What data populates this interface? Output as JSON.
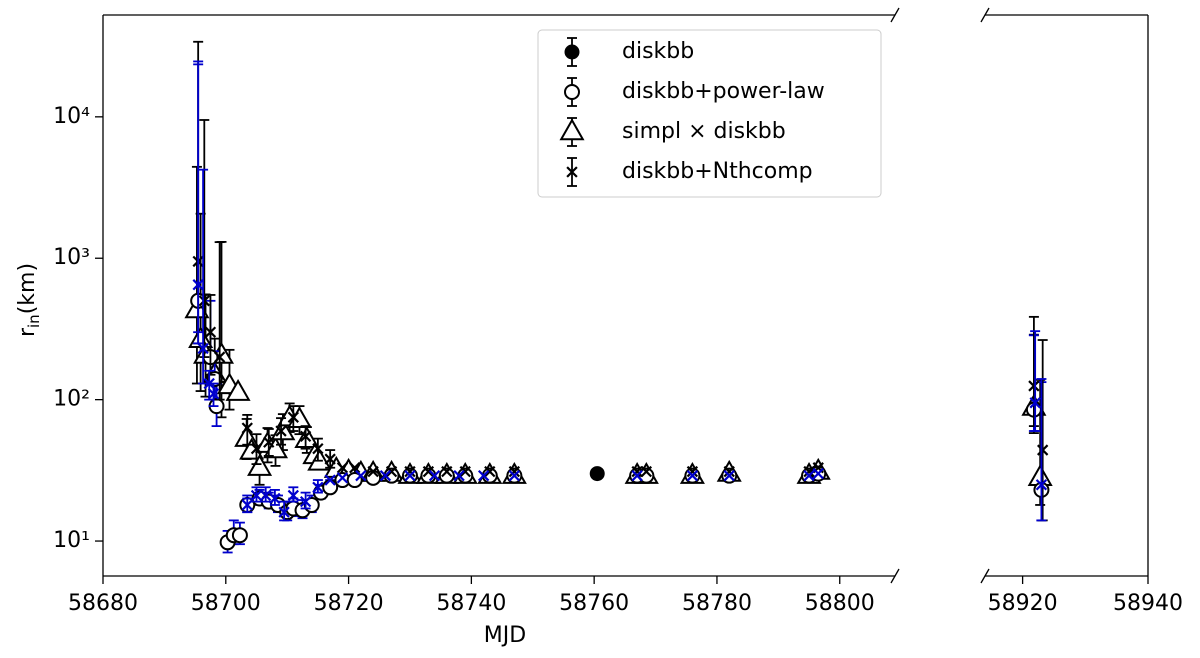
{
  "chart_data": {
    "type": "scatter",
    "x_label": "MJD",
    "y_label": "r",
    "y_label_subscript": "in",
    "y_label_unit": "(km)",
    "yscale": "log",
    "ylim": [
      5.66,
      52500
    ],
    "yticks": [
      {
        "value": 10,
        "label": "10¹"
      },
      {
        "value": 100,
        "label": "10²"
      },
      {
        "value": 1000,
        "label": "10³"
      },
      {
        "value": 10000,
        "label": "10⁴"
      }
    ],
    "panels": [
      {
        "xlim": [
          58680,
          58809
        ],
        "xticks": [
          58680,
          58700,
          58720,
          58740,
          58760,
          58780,
          58800
        ]
      },
      {
        "xlim": [
          58914,
          58940
        ],
        "xticks": [
          58920,
          58940
        ]
      }
    ],
    "legend_loc": "upper center",
    "series": [
      {
        "name": "diskbb",
        "marker": "filled-circle",
        "color": "#000000",
        "ecolor": "#000000",
        "x": [
          58760.5
        ],
        "values": [
          30
        ],
        "yerr": [
          null
        ]
      },
      {
        "name": "diskbb+power-law",
        "marker": "open-circle",
        "color": "#000000",
        "ecolor": "#0000cc",
        "x": [
          58695.5,
          58697.5,
          58698.2,
          58698.5,
          58700.3,
          58701.3,
          58702.3,
          58703.5,
          58705.5,
          58707,
          58708.5,
          58710,
          58711,
          58712.5,
          58714,
          58715.5,
          58717,
          58719,
          58721,
          58724,
          58727,
          58730,
          58733,
          58736,
          58739,
          58743,
          58747,
          58767,
          58768.5,
          58776,
          58782,
          58795,
          58796.5,
          58921.8,
          58923
        ],
        "values": [
          500,
          200,
          140,
          90,
          9.8,
          11,
          11,
          18,
          20,
          19,
          18,
          16,
          17,
          16.5,
          18,
          22,
          24,
          27,
          27,
          28,
          29,
          29,
          29,
          29,
          29,
          29,
          29,
          29,
          29,
          29,
          29,
          29,
          30,
          85,
          23
        ],
        "yerr": [
          [
            200,
            23000
          ],
          [
            70,
            300
          ],
          [
            40,
            80
          ],
          [
            25,
            40
          ],
          [
            1.5,
            2
          ],
          [
            1.5,
            3
          ],
          [
            1.5,
            2.5
          ],
          [
            2,
            3
          ],
          [
            2,
            3
          ],
          [
            2,
            3
          ],
          [
            2,
            3
          ],
          [
            2,
            3
          ],
          [
            2,
            3
          ],
          [
            2,
            3
          ],
          [
            2,
            3
          ],
          [
            2,
            3
          ],
          [
            2,
            3
          ],
          null,
          null,
          null,
          null,
          null,
          null,
          null,
          null,
          null,
          null,
          null,
          null,
          null,
          null,
          null,
          null,
          [
            25,
            200
          ],
          [
            9,
            110
          ]
        ]
      },
      {
        "name": "simpl × diskbb",
        "marker": "open-triangle",
        "color": "#000000",
        "ecolor": "#000000",
        "x": [
          58695.3,
          58695.9,
          58696.7,
          58698.2,
          58699.3,
          58700.6,
          58702,
          58703.4,
          58704.2,
          58705.5,
          58706.8,
          58708.1,
          58709.3,
          58710.4,
          58712,
          58713.2,
          58714.5,
          58715.3,
          58718,
          58720,
          58722,
          58724,
          58727,
          58730,
          58733,
          58736,
          58739,
          58743,
          58747,
          58767,
          58768.5,
          58776,
          58782,
          58795,
          58796.5,
          58921.8,
          58922.8
        ],
        "values": [
          430,
          265,
          205,
          150,
          205,
          125,
          112,
          53,
          43,
          33,
          48,
          44,
          59,
          74,
          72,
          52,
          40,
          36,
          32,
          31,
          30,
          30,
          30,
          29,
          29,
          29,
          29,
          29,
          29,
          29,
          29,
          29,
          30,
          29,
          31,
          88,
          28
        ],
        "yerr": [
          [
            300,
            4000
          ],
          [
            150,
            1800
          ],
          [
            100,
            350
          ],
          [
            60,
            120
          ],
          [
            130,
            1100
          ],
          [
            40,
            100
          ],
          null,
          [
            15,
            20
          ],
          null,
          [
            8,
            12
          ],
          [
            12,
            15
          ],
          [
            10,
            12
          ],
          [
            15,
            20
          ],
          [
            15,
            20
          ],
          [
            15,
            18
          ],
          [
            10,
            12
          ],
          null,
          null,
          null,
          null,
          null,
          null,
          null,
          null,
          null,
          null,
          null,
          null,
          null,
          null,
          null,
          null,
          null,
          null,
          null,
          [
            30,
            200
          ],
          [
            10,
            110
          ]
        ]
      },
      {
        "name": "diskbb+Nthcomp",
        "marker": "x",
        "color": "#000000",
        "ecolor": "#000000",
        "x": [
          58695.5,
          58696.5,
          58697.5,
          58699,
          58703.5,
          58705,
          58707,
          58709,
          58711,
          58713,
          58715,
          58717,
          58719,
          58721,
          58724,
          58727,
          58730,
          58733,
          58736,
          58739,
          58743,
          58747,
          58767,
          58768.5,
          58776,
          58782,
          58795,
          58796.5,
          58921.8,
          58923.2
        ],
        "values": [
          950,
          500,
          300,
          200,
          63,
          45,
          50,
          60,
          75,
          55,
          45,
          38,
          33,
          33,
          31,
          31,
          31,
          31,
          31,
          31,
          31,
          31,
          31,
          31,
          31,
          31,
          31,
          33,
          125,
          44
        ],
        "yerr": [
          [
            700,
            33000
          ],
          [
            300,
            9000
          ],
          [
            150,
            250
          ],
          [
            100,
            1100
          ],
          [
            15,
            15
          ],
          [
            10,
            12
          ],
          [
            10,
            12
          ],
          [
            12,
            14
          ],
          [
            15,
            15
          ],
          [
            10,
            10
          ],
          [
            8,
            8
          ],
          [
            5,
            6
          ],
          null,
          null,
          null,
          null,
          null,
          null,
          null,
          null,
          null,
          null,
          null,
          null,
          null,
          null,
          null,
          null,
          [
            60,
            260
          ],
          [
            30,
            220
          ]
        ]
      },
      {
        "marker": "x",
        "color": "#0000cc",
        "ecolor": "#0000cc",
        "x": [
          58695.5,
          58696.3,
          58697.3,
          58698,
          58703.5,
          58705,
          58706.5,
          58708,
          58709.5,
          58711,
          58713,
          58715,
          58717,
          58719,
          58722,
          58726,
          58730,
          58734,
          58738,
          58742,
          58747,
          58767,
          58776,
          58782,
          58795,
          58796.5,
          58922,
          58923
        ],
        "values": [
          650,
          230,
          130,
          110,
          18,
          21,
          21,
          20,
          16,
          21,
          19,
          24,
          27,
          28,
          29,
          29,
          29,
          29,
          29,
          29,
          29,
          29,
          29,
          29,
          29,
          30,
          95,
          25
        ],
        "yerr": [
          [
            400,
            24000
          ],
          [
            100,
            4000
          ],
          [
            30,
            30
          ],
          [
            20,
            20
          ],
          [
            2,
            2
          ],
          [
            2,
            3
          ],
          [
            2,
            3
          ],
          [
            2,
            3
          ],
          [
            2,
            3
          ],
          [
            2,
            3
          ],
          [
            2,
            3
          ],
          [
            2,
            3
          ],
          null,
          null,
          null,
          null,
          null,
          null,
          null,
          null,
          null,
          null,
          null,
          null,
          null,
          null,
          [
            35,
            210
          ],
          [
            11,
            115
          ]
        ]
      }
    ]
  }
}
